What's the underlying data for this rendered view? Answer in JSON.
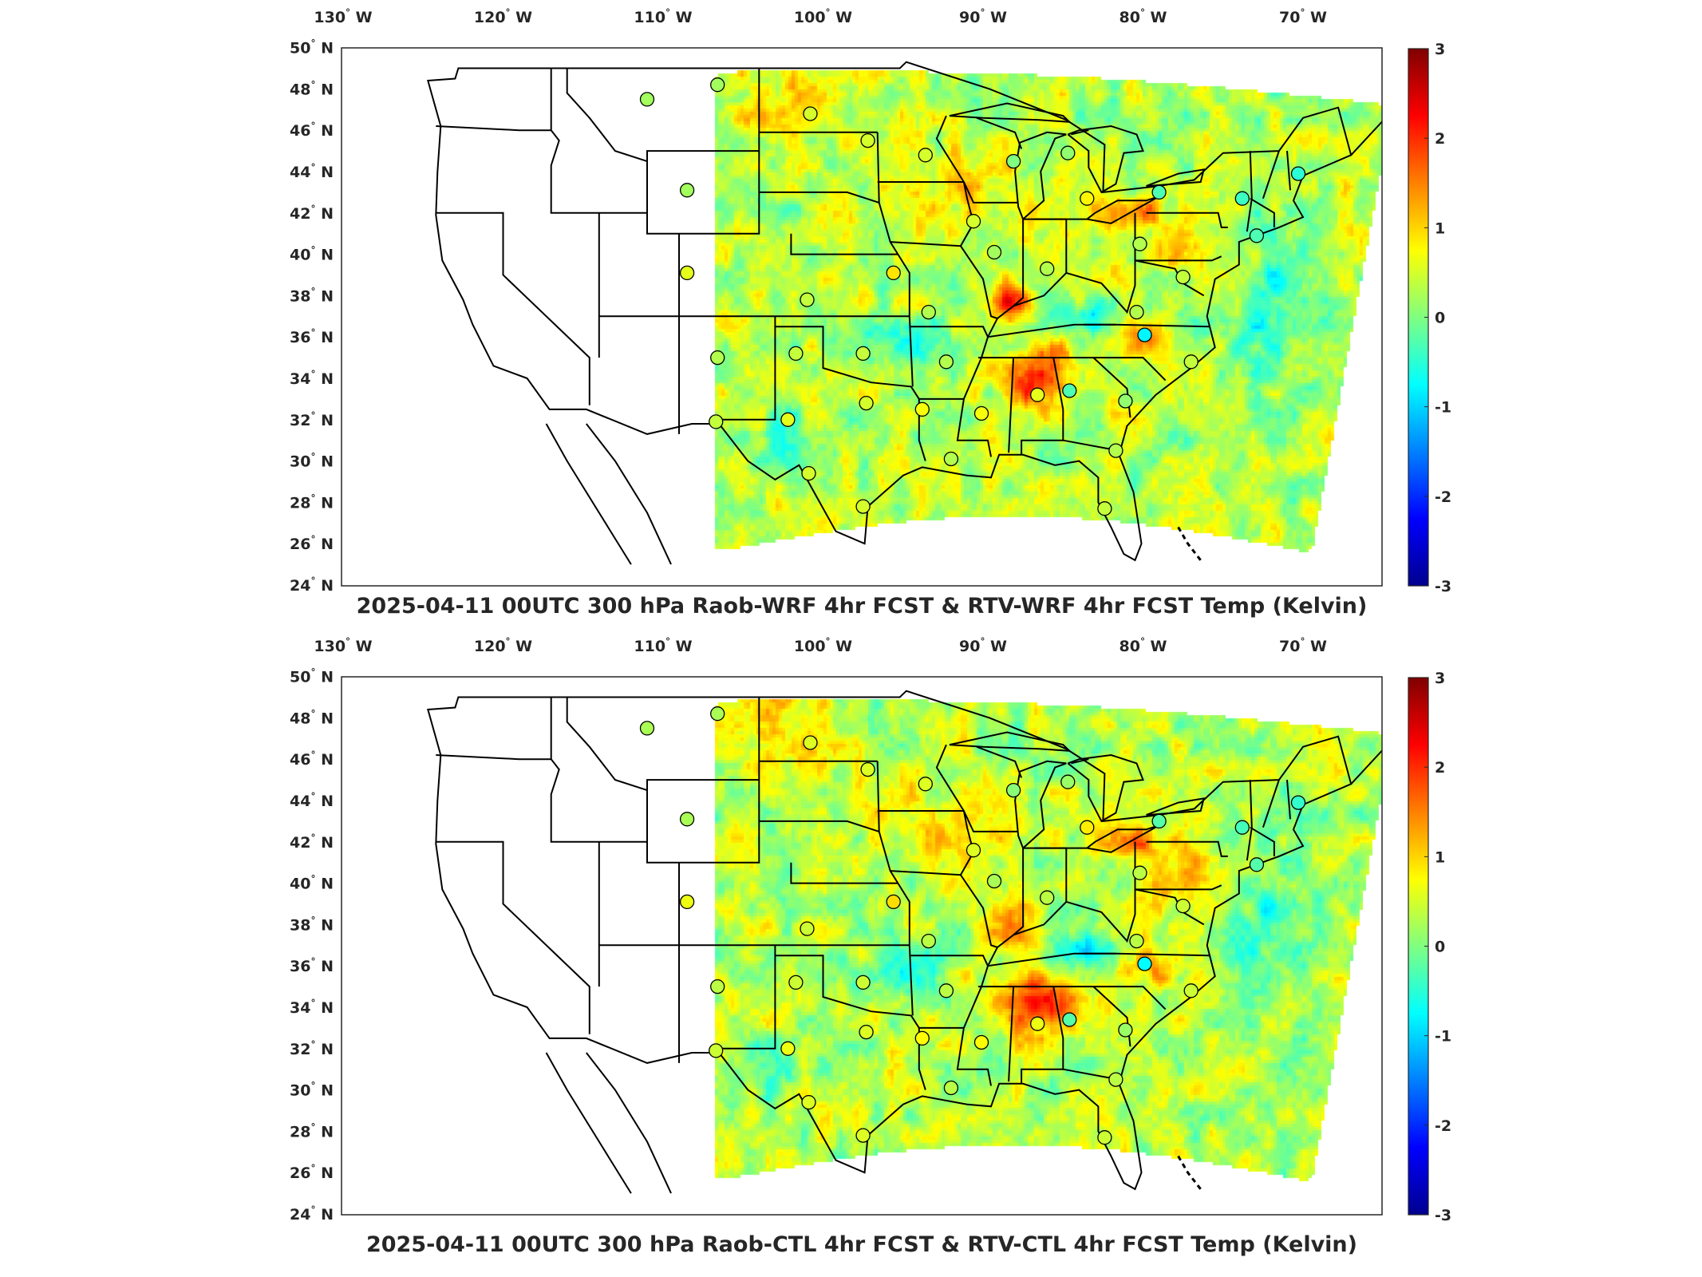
{
  "maps": [
    {
      "title": "2025-04-11 00UTC 300 hPa Raob-WRF 4hr FCST & RTV-WRF 4hr FCST Temp (Kelvin)",
      "variant": "wrf"
    },
    {
      "title": "2025-04-11 00UTC 300 hPa Raob-CTL 4hr FCST & RTV-CTL 4hr FCST Temp (Kelvin)",
      "variant": "ctl"
    }
  ],
  "lon_ticks": [
    {
      "value": 130,
      "hemi": "W"
    },
    {
      "value": 120,
      "hemi": "W"
    },
    {
      "value": 110,
      "hemi": "W"
    },
    {
      "value": 100,
      "hemi": "W"
    },
    {
      "value": 90,
      "hemi": "W"
    },
    {
      "value": 80,
      "hemi": "W"
    },
    {
      "value": 70,
      "hemi": "W"
    }
  ],
  "lat_ticks": [
    {
      "value": 50,
      "hemi": "N"
    },
    {
      "value": 48,
      "hemi": "N"
    },
    {
      "value": 46,
      "hemi": "N"
    },
    {
      "value": 44,
      "hemi": "N"
    },
    {
      "value": 42,
      "hemi": "N"
    },
    {
      "value": 40,
      "hemi": "N"
    },
    {
      "value": 38,
      "hemi": "N"
    },
    {
      "value": 36,
      "hemi": "N"
    },
    {
      "value": 34,
      "hemi": "N"
    },
    {
      "value": 32,
      "hemi": "N"
    },
    {
      "value": 30,
      "hemi": "N"
    },
    {
      "value": 28,
      "hemi": "N"
    },
    {
      "value": 26,
      "hemi": "N"
    },
    {
      "value": 24,
      "hemi": "N"
    }
  ],
  "colorbar": {
    "min": -3,
    "max": 3,
    "ticks": [
      "3",
      "2",
      "1",
      "0",
      "-1",
      "-2",
      "-3"
    ],
    "colormap": [
      "#00008f",
      "#0000ff",
      "#0080ff",
      "#00ffff",
      "#80ff80",
      "#ffff00",
      "#ff8000",
      "#ff0000",
      "#800000"
    ]
  },
  "raob_stations": [
    {
      "lon": -111.0,
      "lat": 47.5,
      "value": 0.2
    },
    {
      "lon": -106.6,
      "lat": 48.2,
      "value": 0.2
    },
    {
      "lon": -100.8,
      "lat": 46.8,
      "value": 0.5
    },
    {
      "lon": -97.2,
      "lat": 45.5,
      "value": 0.5
    },
    {
      "lon": -93.6,
      "lat": 44.8,
      "value": 0.5
    },
    {
      "lon": -88.1,
      "lat": 44.5,
      "value": 0.0
    },
    {
      "lon": -84.7,
      "lat": 44.9,
      "value": 0.1
    },
    {
      "lon": -108.5,
      "lat": 43.1,
      "value": 0.2
    },
    {
      "lon": -90.6,
      "lat": 41.6,
      "value": 0.5
    },
    {
      "lon": -83.5,
      "lat": 42.7,
      "value": 0.8
    },
    {
      "lon": -79.0,
      "lat": 43.0,
      "value": -0.3
    },
    {
      "lon": -73.8,
      "lat": 42.7,
      "value": -0.4
    },
    {
      "lon": -70.3,
      "lat": 43.9,
      "value": -0.5
    },
    {
      "lon": -72.9,
      "lat": 40.9,
      "value": -0.3
    },
    {
      "lon": -89.3,
      "lat": 40.1,
      "value": 0.2
    },
    {
      "lon": -86.0,
      "lat": 39.3,
      "value": 0.3
    },
    {
      "lon": -80.2,
      "lat": 40.5,
      "value": 0.3
    },
    {
      "lon": -77.5,
      "lat": 38.9,
      "value": 0.4
    },
    {
      "lon": -108.5,
      "lat": 39.1,
      "value": 0.6
    },
    {
      "lon": -95.6,
      "lat": 39.1,
      "value": 0.9
    },
    {
      "lon": -101.0,
      "lat": 37.8,
      "value": 0.4
    },
    {
      "lon": -93.4,
      "lat": 37.2,
      "value": 0.3
    },
    {
      "lon": -80.4,
      "lat": 37.2,
      "value": 0.3
    },
    {
      "lon": -79.9,
      "lat": 36.1,
      "value": -0.8
    },
    {
      "lon": -106.6,
      "lat": 35.0,
      "value": 0.3
    },
    {
      "lon": -101.7,
      "lat": 35.2,
      "value": 0.4
    },
    {
      "lon": -97.5,
      "lat": 35.2,
      "value": 0.4
    },
    {
      "lon": -92.3,
      "lat": 34.8,
      "value": 0.3
    },
    {
      "lon": -77.0,
      "lat": 34.8,
      "value": 0.4
    },
    {
      "lon": -86.6,
      "lat": 33.2,
      "value": 0.6
    },
    {
      "lon": -84.6,
      "lat": 33.4,
      "value": -0.3
    },
    {
      "lon": -81.1,
      "lat": 32.9,
      "value": 0.1
    },
    {
      "lon": -97.3,
      "lat": 32.8,
      "value": 0.5
    },
    {
      "lon": -93.8,
      "lat": 32.5,
      "value": 0.7
    },
    {
      "lon": -90.1,
      "lat": 32.3,
      "value": 0.7
    },
    {
      "lon": -106.7,
      "lat": 31.9,
      "value": 0.4
    },
    {
      "lon": -102.2,
      "lat": 32.0,
      "value": 0.6
    },
    {
      "lon": -92.0,
      "lat": 30.1,
      "value": 0.3
    },
    {
      "lon": -81.7,
      "lat": 30.5,
      "value": 0.3
    },
    {
      "lon": -100.9,
      "lat": 29.4,
      "value": 0.5
    },
    {
      "lon": -97.5,
      "lat": 27.8,
      "value": 0.5
    },
    {
      "lon": -82.4,
      "lat": 27.7,
      "value": 0.4
    }
  ]
}
